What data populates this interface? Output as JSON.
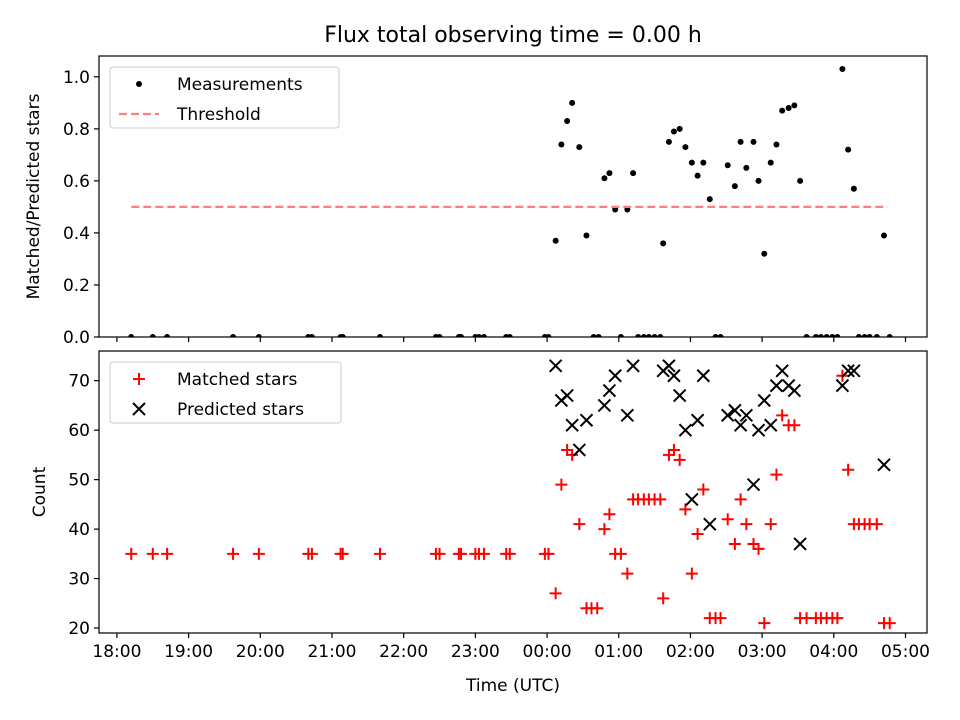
{
  "figure": {
    "title": "Flux total observing time = 0.00 h"
  },
  "chart_data": [
    {
      "type": "scatter",
      "panel": "top",
      "xlabel": "",
      "ylabel": "Matched/Predicted stars",
      "xlim": [
        17.75,
        29.3
      ],
      "ylim": [
        0,
        1.08
      ],
      "yticks": [
        0.0,
        0.2,
        0.4,
        0.6,
        0.8,
        1.0
      ],
      "ytick_labels": [
        "0.0",
        "0.2",
        "0.4",
        "0.6",
        "0.8",
        "1.0"
      ],
      "grid": false,
      "legend": {
        "position": "upper-left",
        "entries": [
          "Measurements",
          "Threshold"
        ]
      },
      "series": [
        {
          "name": "Measurements",
          "marker": "dot",
          "color": "#000000",
          "points": [
            [
              18.2,
              0
            ],
            [
              18.5,
              0
            ],
            [
              18.7,
              0
            ],
            [
              19.62,
              0
            ],
            [
              19.98,
              0
            ],
            [
              20.67,
              0
            ],
            [
              20.72,
              0
            ],
            [
              21.12,
              0
            ],
            [
              21.15,
              0
            ],
            [
              21.67,
              0
            ],
            [
              22.45,
              0
            ],
            [
              22.5,
              0
            ],
            [
              22.77,
              0
            ],
            [
              22.8,
              0
            ],
            [
              23.0,
              0
            ],
            [
              23.05,
              0
            ],
            [
              23.12,
              0
            ],
            [
              23.43,
              0
            ],
            [
              23.48,
              0
            ],
            [
              23.97,
              0
            ],
            [
              24.02,
              0
            ],
            [
              24.12,
              0.37
            ],
            [
              24.2,
              0.74
            ],
            [
              24.28,
              0.83
            ],
            [
              24.35,
              0.9
            ],
            [
              24.45,
              0.73
            ],
            [
              24.55,
              0.39
            ],
            [
              24.65,
              0
            ],
            [
              24.72,
              0
            ],
            [
              24.8,
              0.61
            ],
            [
              24.87,
              0.63
            ],
            [
              24.95,
              0.49
            ],
            [
              25.03,
              0
            ],
            [
              25.12,
              0.49
            ],
            [
              25.2,
              0.63
            ],
            [
              25.27,
              0
            ],
            [
              25.35,
              0
            ],
            [
              25.42,
              0
            ],
            [
              25.5,
              0
            ],
            [
              25.58,
              0
            ],
            [
              25.62,
              0.36
            ],
            [
              25.7,
              0.75
            ],
            [
              25.77,
              0.79
            ],
            [
              25.85,
              0.8
            ],
            [
              25.93,
              0.73
            ],
            [
              26.02,
              0.67
            ],
            [
              26.1,
              0.62
            ],
            [
              26.18,
              0.67
            ],
            [
              26.27,
              0.53
            ],
            [
              26.35,
              0
            ],
            [
              26.42,
              0
            ],
            [
              26.52,
              0.66
            ],
            [
              26.62,
              0.58
            ],
            [
              26.7,
              0.75
            ],
            [
              26.78,
              0.65
            ],
            [
              26.88,
              0.75
            ],
            [
              26.95,
              0.6
            ],
            [
              27.03,
              0.32
            ],
            [
              27.12,
              0.67
            ],
            [
              27.2,
              0.74
            ],
            [
              27.28,
              0.87
            ],
            [
              27.37,
              0.88
            ],
            [
              27.45,
              0.89
            ],
            [
              27.53,
              0.6
            ],
            [
              27.62,
              0
            ],
            [
              27.75,
              0
            ],
            [
              27.82,
              0
            ],
            [
              27.9,
              0
            ],
            [
              27.98,
              0
            ],
            [
              28.05,
              0
            ],
            [
              28.12,
              1.03
            ],
            [
              28.2,
              0.72
            ],
            [
              28.28,
              0.57
            ],
            [
              28.35,
              0
            ],
            [
              28.43,
              0
            ],
            [
              28.5,
              0
            ],
            [
              28.6,
              0
            ],
            [
              28.7,
              0.39
            ],
            [
              28.78,
              0
            ]
          ]
        },
        {
          "name": "Threshold",
          "line": "dashed",
          "color": "#ff7f7f",
          "x": [
            18.2,
            28.75
          ],
          "y": [
            0.5,
            0.5
          ]
        }
      ]
    },
    {
      "type": "scatter",
      "panel": "bottom",
      "xlabel": "Time (UTC)",
      "ylabel": "Count",
      "xlim": [
        17.75,
        29.3
      ],
      "ylim": [
        19,
        76
      ],
      "yticks": [
        20,
        30,
        40,
        50,
        60,
        70
      ],
      "ytick_labels": [
        "20",
        "30",
        "40",
        "50",
        "60",
        "70"
      ],
      "xticks": [
        18,
        19,
        20,
        21,
        22,
        23,
        24,
        25,
        26,
        27,
        28,
        29
      ],
      "xtick_labels": [
        "18:00",
        "19:00",
        "20:00",
        "21:00",
        "22:00",
        "23:00",
        "00:00",
        "01:00",
        "02:00",
        "03:00",
        "04:00",
        "05:00"
      ],
      "grid": false,
      "legend": {
        "position": "upper-left",
        "entries": [
          "Matched stars",
          "Predicted stars"
        ]
      },
      "series": [
        {
          "name": "Matched stars",
          "marker": "plus",
          "color": "#ff0000",
          "points": [
            [
              18.2,
              35
            ],
            [
              18.5,
              35
            ],
            [
              18.7,
              35
            ],
            [
              19.62,
              35
            ],
            [
              19.98,
              35
            ],
            [
              20.67,
              35
            ],
            [
              20.72,
              35
            ],
            [
              21.12,
              35
            ],
            [
              21.15,
              35
            ],
            [
              21.67,
              35
            ],
            [
              22.45,
              35
            ],
            [
              22.5,
              35
            ],
            [
              22.77,
              35
            ],
            [
              22.8,
              35
            ],
            [
              23.0,
              35
            ],
            [
              23.05,
              35
            ],
            [
              23.12,
              35
            ],
            [
              23.43,
              35
            ],
            [
              23.48,
              35
            ],
            [
              23.97,
              35
            ],
            [
              24.02,
              35
            ],
            [
              24.12,
              27
            ],
            [
              24.2,
              49
            ],
            [
              24.28,
              56
            ],
            [
              24.35,
              55
            ],
            [
              24.45,
              41
            ],
            [
              24.55,
              24
            ],
            [
              24.62,
              24
            ],
            [
              24.7,
              24
            ],
            [
              24.8,
              40
            ],
            [
              24.87,
              43
            ],
            [
              24.95,
              35
            ],
            [
              25.03,
              35
            ],
            [
              25.12,
              31
            ],
            [
              25.2,
              46
            ],
            [
              25.27,
              46
            ],
            [
              25.35,
              46
            ],
            [
              25.42,
              46
            ],
            [
              25.5,
              46
            ],
            [
              25.58,
              46
            ],
            [
              25.62,
              26
            ],
            [
              25.7,
              55
            ],
            [
              25.77,
              56
            ],
            [
              25.85,
              54
            ],
            [
              25.93,
              44
            ],
            [
              26.02,
              31
            ],
            [
              26.1,
              39
            ],
            [
              26.18,
              48
            ],
            [
              26.27,
              22
            ],
            [
              26.35,
              22
            ],
            [
              26.42,
              22
            ],
            [
              26.52,
              42
            ],
            [
              26.62,
              37
            ],
            [
              26.7,
              46
            ],
            [
              26.78,
              41
            ],
            [
              26.88,
              37
            ],
            [
              26.95,
              36
            ],
            [
              27.03,
              21
            ],
            [
              27.12,
              41
            ],
            [
              27.2,
              51
            ],
            [
              27.28,
              63
            ],
            [
              27.37,
              61
            ],
            [
              27.45,
              61
            ],
            [
              27.53,
              22
            ],
            [
              27.62,
              22
            ],
            [
              27.75,
              22
            ],
            [
              27.82,
              22
            ],
            [
              27.9,
              22
            ],
            [
              27.98,
              22
            ],
            [
              28.05,
              22
            ],
            [
              28.12,
              71
            ],
            [
              28.2,
              52
            ],
            [
              28.28,
              41
            ],
            [
              28.35,
              41
            ],
            [
              28.43,
              41
            ],
            [
              28.5,
              41
            ],
            [
              28.6,
              41
            ],
            [
              28.7,
              21
            ],
            [
              28.78,
              21
            ]
          ]
        },
        {
          "name": "Predicted stars",
          "marker": "x",
          "color": "#000000",
          "points": [
            [
              24.12,
              73
            ],
            [
              24.2,
              66
            ],
            [
              24.28,
              67
            ],
            [
              24.35,
              61
            ],
            [
              24.45,
              56
            ],
            [
              24.55,
              62
            ],
            [
              24.8,
              65
            ],
            [
              24.87,
              68
            ],
            [
              24.95,
              71
            ],
            [
              25.12,
              63
            ],
            [
              25.2,
              73
            ],
            [
              25.62,
              72
            ],
            [
              25.7,
              73
            ],
            [
              25.77,
              71
            ],
            [
              25.85,
              67
            ],
            [
              25.93,
              60
            ],
            [
              26.02,
              46
            ],
            [
              26.1,
              62
            ],
            [
              26.18,
              71
            ],
            [
              26.27,
              41
            ],
            [
              26.52,
              63
            ],
            [
              26.62,
              64
            ],
            [
              26.7,
              61
            ],
            [
              26.78,
              63
            ],
            [
              26.88,
              49
            ],
            [
              26.95,
              60
            ],
            [
              27.03,
              66
            ],
            [
              27.12,
              61
            ],
            [
              27.2,
              69
            ],
            [
              27.28,
              72
            ],
            [
              27.37,
              69
            ],
            [
              27.45,
              68
            ],
            [
              27.53,
              37
            ],
            [
              28.12,
              69
            ],
            [
              28.2,
              72
            ],
            [
              28.28,
              72
            ],
            [
              28.7,
              53
            ]
          ]
        }
      ]
    }
  ]
}
